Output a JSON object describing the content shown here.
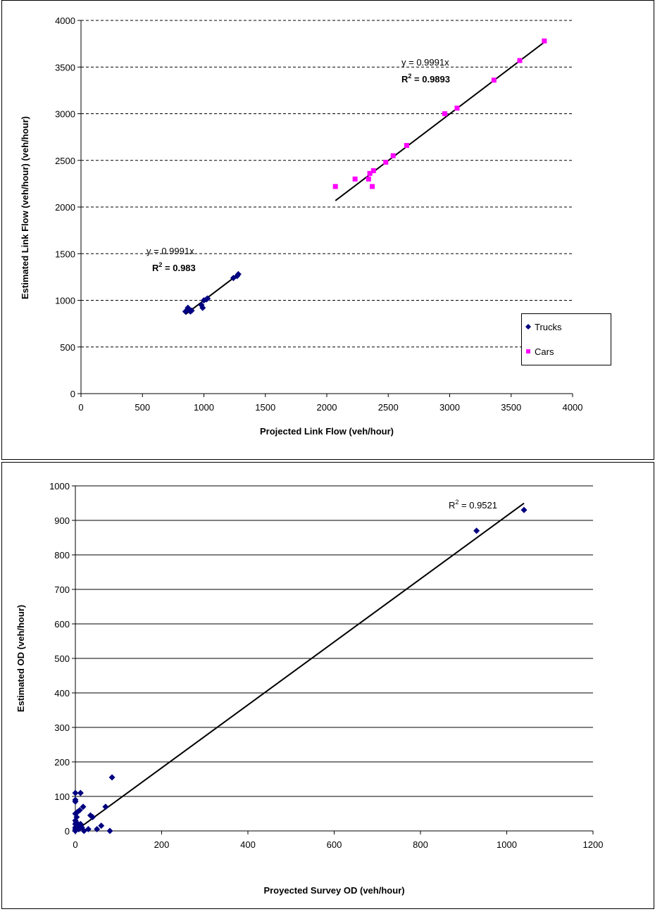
{
  "chart_data": [
    {
      "type": "scatter",
      "x_label": "Projected Link Flow (veh/hour)",
      "y_label": "Estimated Link Flow (veh/hour) (veh/hour)",
      "xlim": [
        0,
        4000
      ],
      "ylim": [
        0,
        4000
      ],
      "xticks": [
        0,
        500,
        1000,
        1500,
        2000,
        2500,
        3000,
        3500,
        4000
      ],
      "yticks": [
        0,
        500,
        1000,
        1500,
        2000,
        2500,
        3000,
        3500,
        4000
      ],
      "grid": true,
      "grid_style": "dashed",
      "legend": "right",
      "series": [
        {
          "name": "Trucks",
          "color": "#000080",
          "marker": "diamond",
          "x": [
            850,
            870,
            890,
            900,
            980,
            990,
            1000,
            1020,
            1030,
            1240,
            1270,
            1280
          ],
          "values": [
            880,
            920,
            880,
            890,
            950,
            920,
            1000,
            1010,
            1020,
            1240,
            1260,
            1280
          ],
          "trendline": {
            "slope": 0.9991,
            "x": [
              850,
              1280
            ],
            "equation": "y = 0.9991x",
            "r2": {
              "base": "R",
              "sup": "2",
              "rest": " = 0.983"
            }
          }
        },
        {
          "name": "Cars",
          "color": "#ff00ff",
          "marker": "square",
          "x": [
            2070,
            2230,
            2340,
            2350,
            2370,
            2380,
            2480,
            2540,
            2650,
            2960,
            3060,
            3360,
            3570,
            3770
          ],
          "values": [
            2220,
            2300,
            2300,
            2360,
            2220,
            2390,
            2480,
            2550,
            2660,
            3000,
            3060,
            3360,
            3570,
            3780
          ],
          "trendline": {
            "slope": 0.9991,
            "x": [
              2070,
              3780
            ],
            "equation": "y = 0.9991x",
            "r2": {
              "base": "R",
              "sup": "2",
              "rest": " = 0.9893"
            }
          }
        }
      ]
    },
    {
      "type": "scatter",
      "x_label": "Proyected Survey OD (veh/hour)",
      "y_label": "Estimated  OD (veh/hour)",
      "xlim": [
        0,
        1200
      ],
      "ylim": [
        0,
        1000
      ],
      "xticks": [
        0,
        200,
        400,
        600,
        800,
        1000,
        1200
      ],
      "yticks": [
        0,
        100,
        200,
        300,
        400,
        500,
        600,
        700,
        800,
        900,
        1000
      ],
      "grid": true,
      "grid_style": "solid",
      "series": [
        {
          "color": "#000080",
          "marker": "diamond",
          "x": [
            0,
            0,
            0,
            0,
            0,
            0,
            0,
            0,
            0,
            2,
            3,
            5,
            5,
            8,
            10,
            12,
            12,
            15,
            18,
            20,
            30,
            35,
            40,
            50,
            60,
            70,
            80,
            85,
            930,
            1040
          ],
          "values": [
            110,
            90,
            85,
            50,
            30,
            20,
            10,
            5,
            0,
            25,
            40,
            55,
            15,
            5,
            60,
            110,
            20,
            10,
            70,
            0,
            5,
            45,
            40,
            5,
            15,
            70,
            0,
            155,
            870,
            930
          ],
          "trendline": {
            "slope": 0.913,
            "x": [
              0,
              1040
            ],
            "r2": {
              "base": "R",
              "sup": "2",
              "rest": " = 0.9521"
            }
          }
        }
      ]
    }
  ]
}
